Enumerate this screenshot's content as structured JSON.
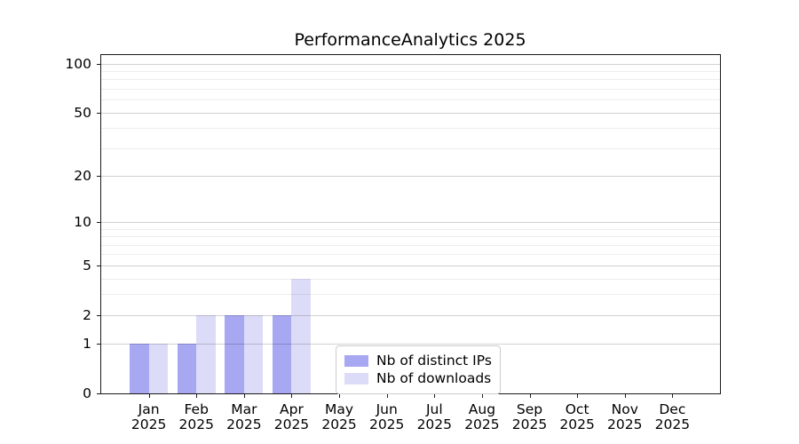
{
  "chart_data": {
    "type": "bar",
    "title": "PerformanceAnalytics 2025",
    "categories": [
      "Jan",
      "Feb",
      "Mar",
      "Apr",
      "May",
      "Jun",
      "Jul",
      "Aug",
      "Sep",
      "Oct",
      "Nov",
      "Dec"
    ],
    "x_year_label": "2025",
    "series": [
      {
        "name": "Nb of distinct IPs",
        "color": "#a7a7f2",
        "values": [
          1,
          1,
          2,
          2,
          0,
          0,
          0,
          0,
          0,
          0,
          0,
          0
        ]
      },
      {
        "name": "Nb of downloads",
        "color": "#dcdcf8",
        "values": [
          1,
          2,
          2,
          4,
          0,
          0,
          0,
          0,
          0,
          0,
          0,
          0
        ]
      }
    ],
    "yscale": "log1p",
    "ylim": [
      0,
      113
    ],
    "y_major_ticks": [
      0,
      1,
      2,
      5,
      10,
      20,
      50,
      100
    ],
    "y_minor_ticks": [
      3,
      4,
      6,
      7,
      8,
      9,
      30,
      40,
      60,
      70,
      80,
      90
    ],
    "grid": true,
    "grid_above_bars": true,
    "legend_position": "lower center"
  },
  "colors": {
    "background": "#ffffff",
    "spine": "#1a1a1a",
    "text": "#000000",
    "grid_major": "#cccccc",
    "grid_minor": "#ececec",
    "legend_border": "#cccccc",
    "bar_distinct_ips": "#a7a7f2",
    "bar_downloads": "#dcdcf8"
  }
}
